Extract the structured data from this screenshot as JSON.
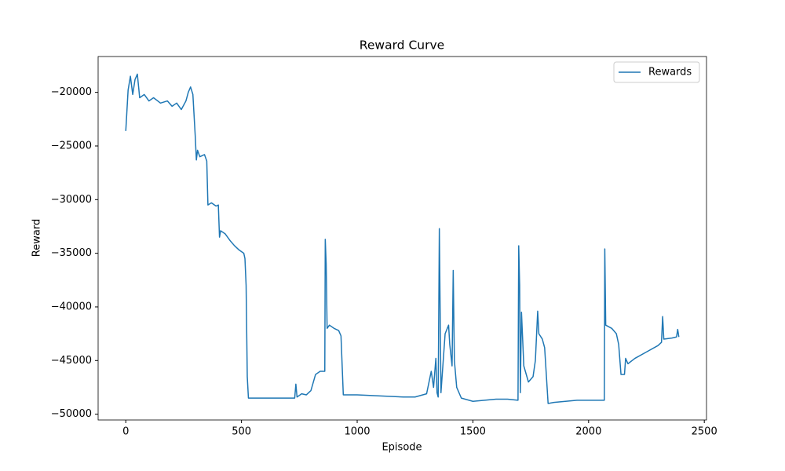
{
  "chart_data": {
    "type": "line",
    "title": "Reward Curve",
    "xlabel": "Episode",
    "ylabel": "Reward",
    "x": [
      0,
      10,
      20,
      30,
      40,
      50,
      60,
      80,
      100,
      120,
      150,
      180,
      200,
      220,
      240,
      260,
      270,
      280,
      290,
      300,
      305,
      310,
      320,
      340,
      350,
      355,
      370,
      390,
      400,
      405,
      410,
      430,
      450,
      470,
      490,
      510,
      515,
      520,
      525,
      530,
      600,
      700,
      730,
      735,
      740,
      760,
      780,
      800,
      820,
      840,
      860,
      862,
      866,
      870,
      880,
      900,
      920,
      930,
      940,
      1000,
      1100,
      1200,
      1250,
      1300,
      1320,
      1330,
      1340,
      1345,
      1350,
      1355,
      1362,
      1380,
      1395,
      1400,
      1410,
      1415,
      1420,
      1430,
      1450,
      1500,
      1550,
      1600,
      1650,
      1695,
      1698,
      1702,
      1705,
      1710,
      1720,
      1740,
      1760,
      1770,
      1780,
      1785,
      1800,
      1810,
      1825,
      1850,
      1900,
      1950,
      2000,
      2068,
      2070,
      2074,
      2100,
      2120,
      2130,
      2140,
      2155,
      2160,
      2170,
      2200,
      2250,
      2300,
      2315,
      2320,
      2325,
      2360,
      2380,
      2385,
      2390
    ],
    "series": [
      {
        "name": "Rewards",
        "color": "#1f77b4",
        "values": [
          -23600,
          -19800,
          -18500,
          -20200,
          -18800,
          -18300,
          -20500,
          -20200,
          -20800,
          -20500,
          -21000,
          -20800,
          -21300,
          -21000,
          -21600,
          -20800,
          -20000,
          -19500,
          -20200,
          -24000,
          -26300,
          -25400,
          -26000,
          -25800,
          -26400,
          -30500,
          -30300,
          -30600,
          -30500,
          -33500,
          -32900,
          -33200,
          -33800,
          -34300,
          -34700,
          -35000,
          -35500,
          -38000,
          -46500,
          -48500,
          -48500,
          -48500,
          -48500,
          -47200,
          -48400,
          -48100,
          -48200,
          -47800,
          -46300,
          -46000,
          -46000,
          -33700,
          -36000,
          -42000,
          -41700,
          -42000,
          -42200,
          -42700,
          -48200,
          -48200,
          -48300,
          -48400,
          -48400,
          -48100,
          -46000,
          -47500,
          -44800,
          -48000,
          -48400,
          -32700,
          -48000,
          -42500,
          -41700,
          -43500,
          -45500,
          -36600,
          -45000,
          -47500,
          -48500,
          -48800,
          -48700,
          -48600,
          -48600,
          -48700,
          -34300,
          -38000,
          -48000,
          -40500,
          -45500,
          -47000,
          -46500,
          -45000,
          -40400,
          -42500,
          -43000,
          -43800,
          -49000,
          -48900,
          -48800,
          -48700,
          -48700,
          -48700,
          -34600,
          -41700,
          -42000,
          -42500,
          -43500,
          -46300,
          -46300,
          -44800,
          -45300,
          -44800,
          -44200,
          -43600,
          -43300,
          -40900,
          -43000,
          -42900,
          -42800,
          -42100,
          -42800
        ]
      }
    ],
    "xlim": [
      -119.5,
      2509.5
    ],
    "ylim": [
      -50540,
      -16660
    ],
    "xticks": [
      0,
      500,
      1000,
      1500,
      2000,
      2500
    ],
    "yticks": [
      {
        "value": -50000,
        "label": "−50000"
      },
      {
        "value": -45000,
        "label": "−45000"
      },
      {
        "value": -40000,
        "label": "−40000"
      },
      {
        "value": -35000,
        "label": "−35000"
      },
      {
        "value": -30000,
        "label": "−30000"
      },
      {
        "value": -25000,
        "label": "−25000"
      },
      {
        "value": -20000,
        "label": "−20000"
      }
    ],
    "legend": "upper right",
    "grid": false
  }
}
